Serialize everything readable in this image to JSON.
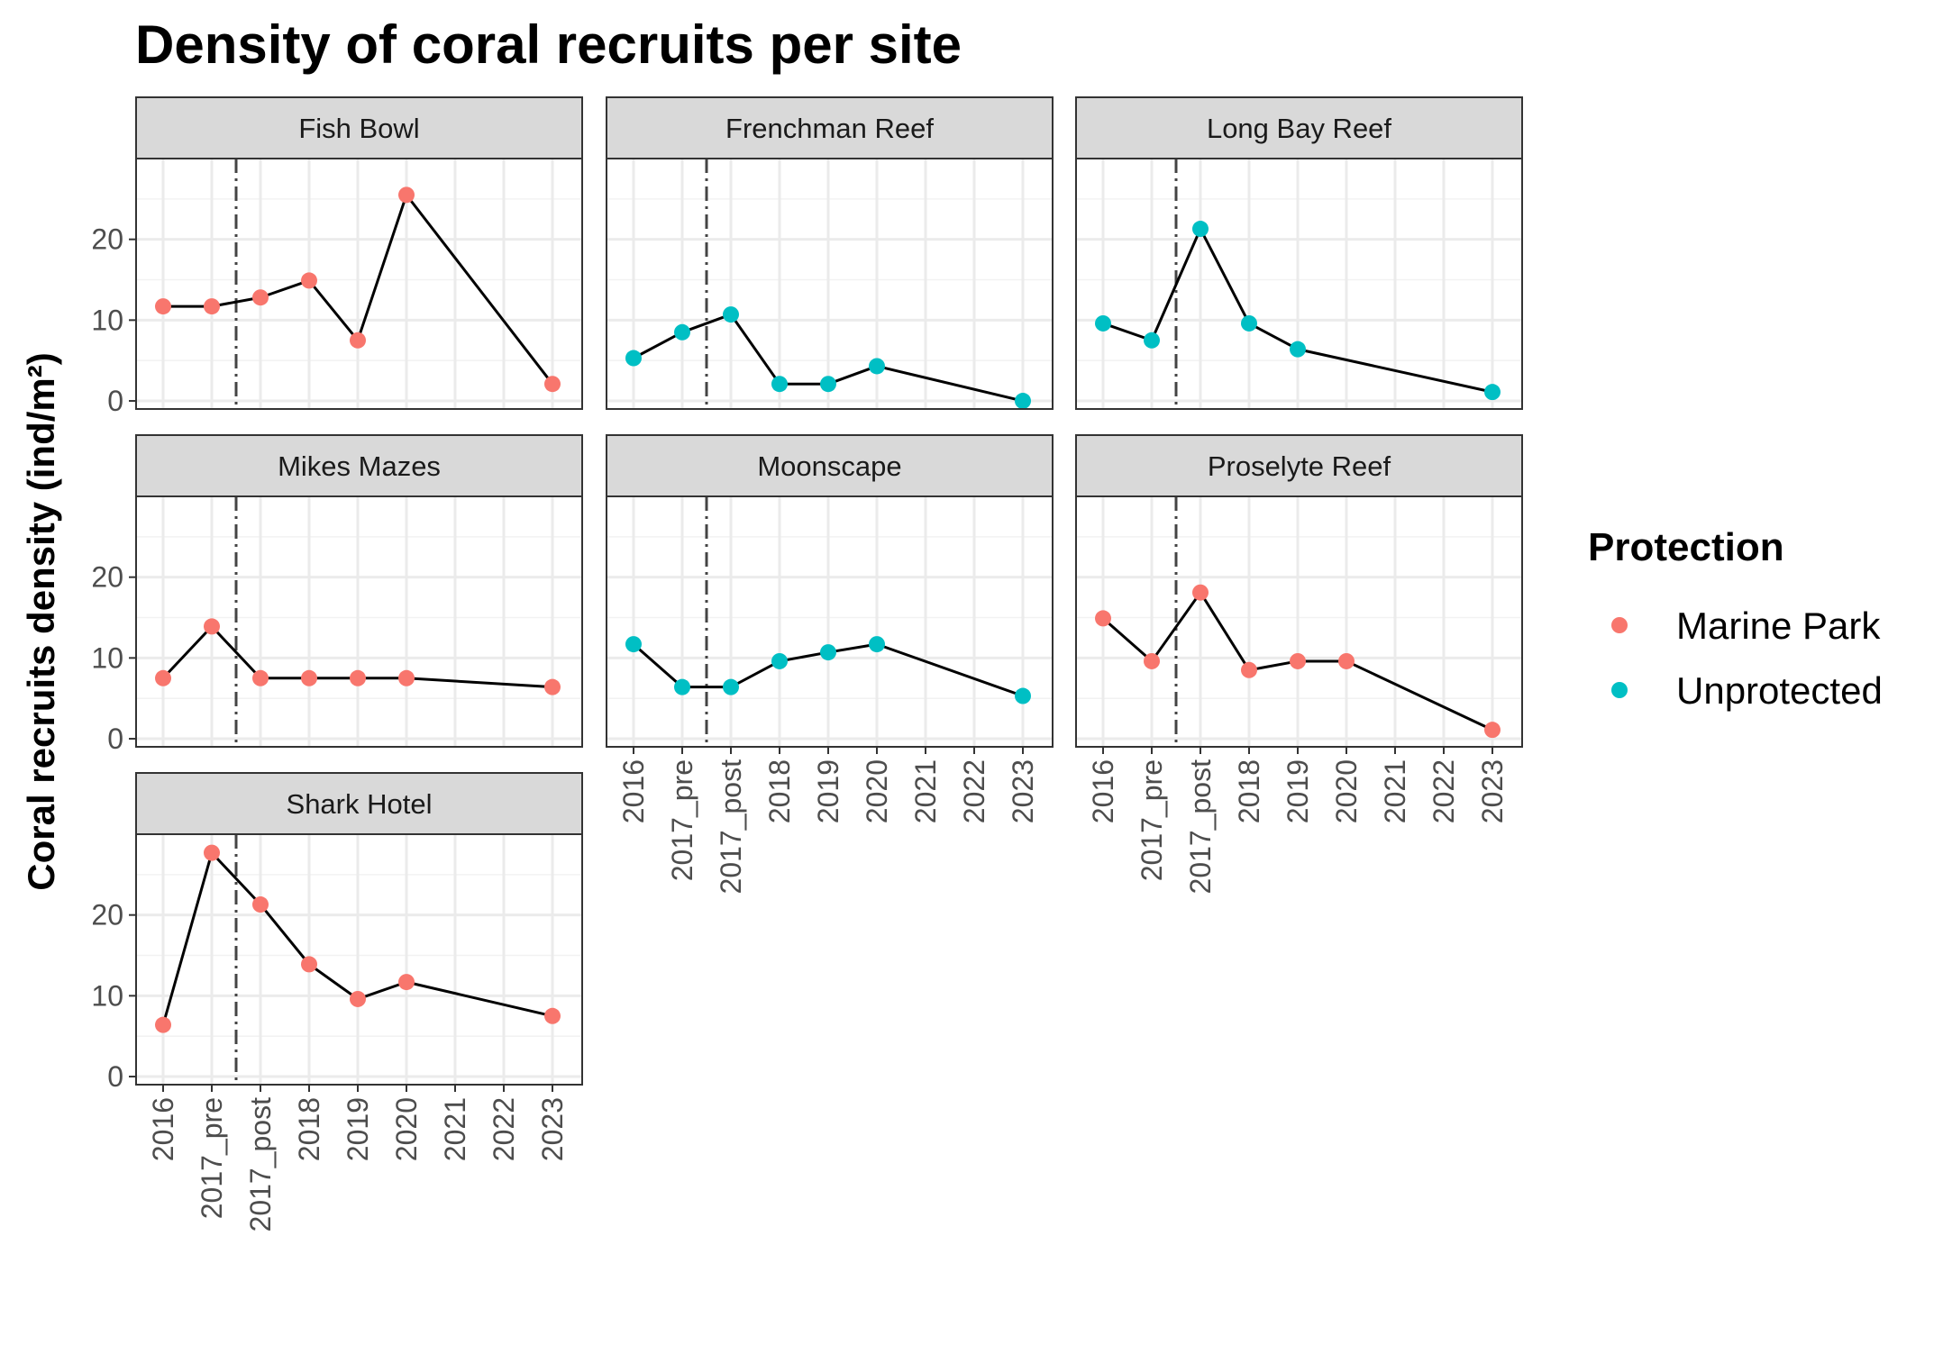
{
  "chart_data": {
    "type": "line",
    "title": "Density of coral recruits per site",
    "ylabel": "Coral recruits density (ind/m²)",
    "xlabel": "",
    "categories": [
      "2016",
      "2017_pre",
      "2017_post",
      "2018",
      "2019",
      "2020",
      "2021",
      "2022",
      "2023"
    ],
    "ylim": [
      -1,
      30
    ],
    "yticks": [
      0,
      10,
      20
    ],
    "reference_line": {
      "style": "dashdot",
      "between": [
        "2017_pre",
        "2017_post"
      ]
    },
    "legend": {
      "title": "Protection",
      "position": "right",
      "entries": [
        {
          "label": "Marine Park",
          "color": "#F8766D"
        },
        {
          "label": "Unprotected",
          "color": "#00BFC4"
        }
      ]
    },
    "grid": true,
    "facets": [
      {
        "name": "Fish Bowl",
        "protection": "Marine Park",
        "x": [
          "2016",
          "2017_pre",
          "2017_post",
          "2018",
          "2019",
          "2020",
          "2023"
        ],
        "y": [
          11.7,
          11.7,
          12.8,
          14.9,
          7.5,
          25.5,
          2.1
        ]
      },
      {
        "name": "Frenchman Reef",
        "protection": "Unprotected",
        "x": [
          "2016",
          "2017_pre",
          "2017_post",
          "2018",
          "2019",
          "2020",
          "2023"
        ],
        "y": [
          5.3,
          8.5,
          10.7,
          2.1,
          2.1,
          4.3,
          0.0
        ]
      },
      {
        "name": "Long Bay Reef",
        "protection": "Unprotected",
        "x": [
          "2016",
          "2017_pre",
          "2017_post",
          "2018",
          "2019",
          "2023"
        ],
        "y": [
          9.6,
          7.5,
          21.3,
          9.6,
          6.4,
          1.1
        ]
      },
      {
        "name": "Mikes Mazes",
        "protection": "Marine Park",
        "x": [
          "2016",
          "2017_pre",
          "2017_post",
          "2018",
          "2019",
          "2020",
          "2023"
        ],
        "y": [
          7.5,
          13.9,
          7.5,
          7.5,
          7.5,
          7.5,
          6.4
        ]
      },
      {
        "name": "Moonscape",
        "protection": "Unprotected",
        "x": [
          "2016",
          "2017_pre",
          "2017_post",
          "2018",
          "2019",
          "2020",
          "2023"
        ],
        "y": [
          11.7,
          6.4,
          6.4,
          9.6,
          10.7,
          11.7,
          5.3
        ]
      },
      {
        "name": "Proselyte Reef",
        "protection": "Marine Park",
        "x": [
          "2016",
          "2017_pre",
          "2017_post",
          "2018",
          "2019",
          "2020",
          "2023"
        ],
        "y": [
          14.9,
          9.6,
          18.1,
          8.5,
          9.6,
          9.6,
          1.1
        ]
      },
      {
        "name": "Shark Hotel",
        "protection": "Marine Park",
        "x": [
          "2016",
          "2017_pre",
          "2017_post",
          "2018",
          "2019",
          "2020",
          "2023"
        ],
        "y": [
          6.4,
          27.7,
          21.3,
          13.9,
          9.6,
          11.7,
          7.5
        ]
      }
    ]
  }
}
